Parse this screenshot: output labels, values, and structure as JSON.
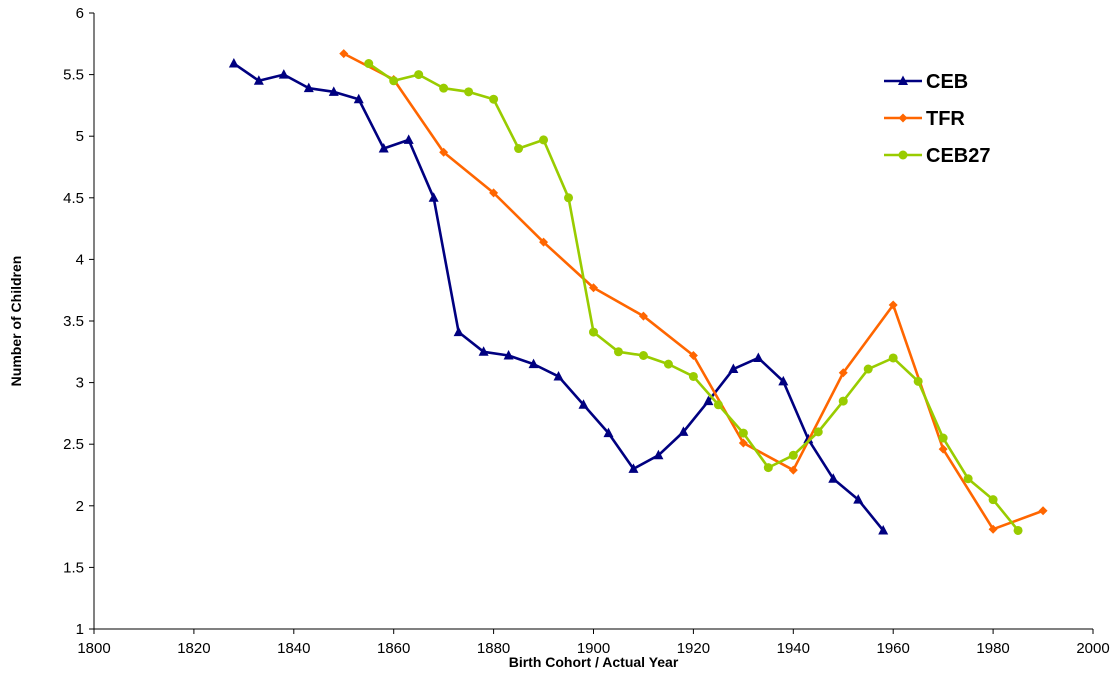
{
  "chart_data": {
    "type": "line",
    "title": "",
    "xlabel": "Birth Cohort / Actual Year",
    "ylabel": "Number of Children",
    "xlim": [
      1800,
      2000
    ],
    "ylim": [
      1,
      6
    ],
    "xticks": [
      1800,
      1820,
      1840,
      1860,
      1880,
      1900,
      1920,
      1940,
      1960,
      1980,
      2000
    ],
    "yticks": [
      1,
      1.5,
      2,
      2.5,
      3,
      3.5,
      4,
      4.5,
      5,
      5.5,
      6
    ],
    "ytick_labels": [
      "1",
      "1.5",
      "2",
      "2.5",
      "3",
      "3.5",
      "4",
      "4.5",
      "5",
      "5.5",
      "6"
    ],
    "grid": false,
    "legend_position": "top-right",
    "series": [
      {
        "name": "CEB",
        "color": "#000080",
        "marker": "triangle",
        "x": [
          1828,
          1833,
          1838,
          1843,
          1848,
          1853,
          1858,
          1863,
          1868,
          1873,
          1878,
          1883,
          1888,
          1893,
          1898,
          1903,
          1908,
          1913,
          1918,
          1923,
          1928,
          1933,
          1938,
          1943,
          1948,
          1953,
          1958
        ],
        "y": [
          5.59,
          5.45,
          5.5,
          5.39,
          5.36,
          5.3,
          4.9,
          4.97,
          4.5,
          3.41,
          3.25,
          3.22,
          3.15,
          3.05,
          2.82,
          2.59,
          2.3,
          2.41,
          2.6,
          2.85,
          3.11,
          3.2,
          3.01,
          2.54,
          2.22,
          2.05,
          1.8
        ]
      },
      {
        "name": "TFR",
        "color": "#FF6600",
        "marker": "diamond",
        "x": [
          1850,
          1860,
          1870,
          1880,
          1890,
          1900,
          1910,
          1920,
          1930,
          1940,
          1950,
          1960,
          1970,
          1980,
          1990
        ],
        "y": [
          5.67,
          5.46,
          4.87,
          4.54,
          4.14,
          3.77,
          3.54,
          3.22,
          2.51,
          2.29,
          3.08,
          3.63,
          2.46,
          1.81,
          1.96
        ]
      },
      {
        "name": "CEB27",
        "color": "#99CC00",
        "marker": "circle",
        "x": [
          1855,
          1860,
          1865,
          1870,
          1875,
          1880,
          1885,
          1890,
          1895,
          1900,
          1905,
          1910,
          1915,
          1920,
          1925,
          1930,
          1935,
          1940,
          1945,
          1950,
          1955,
          1960,
          1965,
          1970,
          1975,
          1980,
          1985
        ],
        "y": [
          5.59,
          5.45,
          5.5,
          5.39,
          5.36,
          5.3,
          4.9,
          4.97,
          4.5,
          3.41,
          3.25,
          3.22,
          3.15,
          3.05,
          2.82,
          2.59,
          2.31,
          2.41,
          2.6,
          2.85,
          3.11,
          3.2,
          3.01,
          2.55,
          2.22,
          2.05,
          1.8
        ]
      }
    ]
  }
}
